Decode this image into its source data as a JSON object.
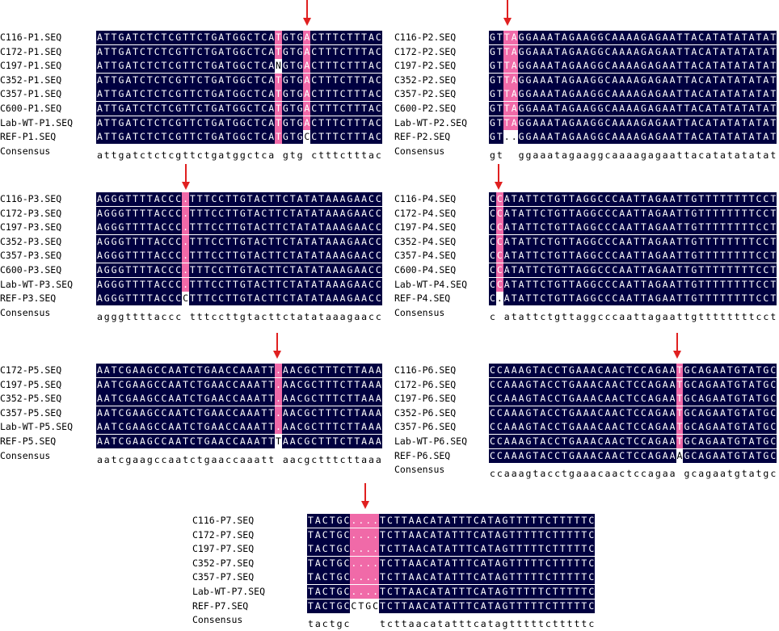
{
  "colors": {
    "identical_bg": "#000040",
    "variant_bg": "#f06aa8",
    "arrow": "#e02020"
  },
  "panels": [
    {
      "id": "P1",
      "names": [
        "C116-P1.SEQ",
        "C172-P1.SEQ",
        "C197-P1.SEQ",
        "C352-P1.SEQ",
        "C357-P1.SEQ",
        "C600-P1.SEQ",
        "Lab-WT-P1.SEQ",
        "REF-P1.SEQ"
      ],
      "seqs": [
        "ATTGATCTCTCGTTCTGATGGCTCATGTGACTTTCTTTAC",
        "ATTGATCTCTCGTTCTGATGGCTCATGTGACTTTCTTTAC",
        "ATTGATCTCTCGTTCTGATGGCTCANGTGACTTTCTTTAC",
        "ATTGATCTCTCGTTCTGATGGCTCATGTGACTTTCTTTAC",
        "ATTGATCTCTCGTTCTGATGGCTCATGTGACTTTCTTTAC",
        "ATTGATCTCTCGTTCTGATGGCTCATGTGACTTTCTTTAC",
        "ATTGATCTCTCGTTCTGATGGCTCATGTGACTTTCTTTAC",
        "ATTGATCTCTCGTTCTGATGGCTCATGTGCCTTTCTTTAC"
      ],
      "consensus": "attgatctctcgttctgatggctca gtg ctttctttac",
      "consensus_label": "Consensus"
    },
    {
      "id": "P2",
      "names": [
        "C116-P2.SEQ",
        "C172-P2.SEQ",
        "C197-P2.SEQ",
        "C352-P2.SEQ",
        "C357-P2.SEQ",
        "C600-P2.SEQ",
        "Lab-WT-P2.SEQ",
        "REF-P2.SEQ"
      ],
      "seqs": [
        "GTTAGGAAATAGAAGGCAAAAGAGAATTACATATATATAT",
        "GTTAGGAAATAGAAGGCAAAAGAGAATTACATATATATAT",
        "GTTAGGAAATAGAAGGCAAAAGAGAATTACATATATATAT",
        "GTTAGGAAATAGAAGGCAAAAGAGAATTACATATATATAT",
        "GTTAGGAAATAGAAGGCAAAAGAGAATTACATATATATAT",
        "GTTAGGAAATAGAAGGCAAAAGAGAATTACATATATATAT",
        "GTTAGGAAATAGAAGGCAAAAGAGAATTACATATATATAT",
        "GT..GGAAATAGAAGGCAAAAGAGAATTACATATATATAT"
      ],
      "consensus": "gt  ggaaatagaaggcaaaagagaattacatatatatat",
      "consensus_label": "Consensus"
    },
    {
      "id": "P3",
      "names": [
        "C116-P3.SEQ",
        "C172-P3.SEQ",
        "C197-P3.SEQ",
        "C352-P3.SEQ",
        "C357-P3.SEQ",
        "C600-P3.SEQ",
        "Lab-WT-P3.SEQ",
        "REF-P3.SEQ"
      ],
      "seqs": [
        "AGGGTTTTACCC.TTTCCTTGTACTTCTATATAAAGAACC",
        "AGGGTTTTACCC.TTTCCTTGTACTTCTATATAAAGAACC",
        "AGGGTTTTACCC.TTTCCTTGTACTTCTATATAAAGAACC",
        "AGGGTTTTACCC.TTTCCTTGTACTTCTATATAAAGAACC",
        "AGGGTTTTACCC.TTTCCTTGTACTTCTATATAAAGAACC",
        "AGGGTTTTACCC.TTTCCTTGTACTTCTATATAAAGAACC",
        "AGGGTTTTACCC.TTTCCTTGTACTTCTATATAAAGAACC",
        "AGGGTTTTACCCCTTTCCTTGTACTTCTATATAAAGAACC"
      ],
      "consensus": "agggttttaccc tttccttgtacttctatataaagaacc",
      "consensus_label": "Consensus"
    },
    {
      "id": "P4",
      "names": [
        "C116-P4.SEQ",
        "C172-P4.SEQ",
        "C197-P4.SEQ",
        "C352-P4.SEQ",
        "C357-P4.SEQ",
        "C600-P4.SEQ",
        "Lab-WT-P4.SEQ",
        "REF-P4.SEQ"
      ],
      "seqs": [
        "CCATATTCTGTTAGGCCCAATTAGAATTGTTTTTTTTCCT",
        "CCATATTCTGTTAGGCCCAATTAGAATTGTTTTTTTTCCT",
        "CCATATTCTGTTAGGCCCAATTAGAATTGTTTTTTTTCCT",
        "CCATATTCTGTTAGGCCCAATTAGAATTGTTTTTTTTCCT",
        "CCATATTCTGTTAGGCCCAATTAGAATTGTTTTTTTTCCT",
        "CCATATTCTGTTAGGCCCAATTAGAATTGTTTTTTTTCCT",
        "CCATATTCTGTTAGGCCCAATTAGAATTGTTTTTTTTCCT",
        "C.ATATTCTGTTAGGCCCAATTAGAATTGTTTTTTTTCCT"
      ],
      "consensus": "c atattctgttaggcccaattagaattgttttttttcct",
      "consensus_label": "Consensus"
    },
    {
      "id": "P5",
      "names": [
        "C172-P5.SEQ",
        "C197-P5.SEQ",
        "C352-P5.SEQ",
        "C357-P5.SEQ",
        "Lab-WT-P5.SEQ",
        "REF-P5.SEQ"
      ],
      "seqs": [
        "AATCGAAGCCAATCTGAACCAAATT.AACGCTTTCTTAAA",
        "AATCGAAGCCAATCTGAACCAAATT.AACGCTTTCTTAAA",
        "AATCGAAGCCAATCTGAACCAAATT.AACGCTTTCTTAAA",
        "AATCGAAGCCAATCTGAACCAAATT.AACGCTTTCTTAAA",
        "AATCGAAGCCAATCTGAACCAAATT.AACGCTTTCTTAAA",
        "AATCGAAGCCAATCTGAACCAAATTTAACGCTTTCTTAAA"
      ],
      "consensus": "aatcgaagccaatctgaaccaaatt aacgctttcttaaa",
      "consensus_label": "Consensus"
    },
    {
      "id": "P6",
      "names": [
        "C116-P6.SEQ",
        "C172-P6.SEQ",
        "C197-P6.SEQ",
        "C352-P6.SEQ",
        "C357-P6.SEQ",
        "Lab-WT-P6.SEQ",
        "REF-P6.SEQ"
      ],
      "seqs": [
        "CCAAAGTACCTGAAACAACTCCAGAATGCAGAATGTATGC",
        "CCAAAGTACCTGAAACAACTCCAGAATGCAGAATGTATGC",
        "CCAAAGTACCTGAAACAACTCCAGAATGCAGAATGTATGC",
        "CCAAAGTACCTGAAACAACTCCAGAATGCAGAATGTATGC",
        "CCAAAGTACCTGAAACAACTCCAGAATGCAGAATGTATGC",
        "CCAAAGTACCTGAAACAACTCCAGAATGCAGAATGTATGC",
        "CCAAAGTACCTGAAACAACTCCAGAAAGCAGAATGTATGC"
      ],
      "consensus": "ccaaagtacctgaaacaactccagaa gcagaatgtatgc",
      "consensus_label": "Consensus"
    },
    {
      "id": "P7",
      "names": [
        "C116-P7.SEQ",
        "C172-P7.SEQ",
        "C197-P7.SEQ",
        "C352-P7.SEQ",
        "C357-P7.SEQ",
        "Lab-WT-P7.SEQ",
        "REF-P7.SEQ"
      ],
      "seqs": [
        "TACTGC....TCTTAACATATTTCATAGTTTTTCTTTTTC",
        "TACTGC....TCTTAACATATTTCATAGTTTTTCTTTTTC",
        "TACTGC....TCTTAACATATTTCATAGTTTTTCTTTTTC",
        "TACTGC....TCTTAACATATTTCATAGTTTTTCTTTTTC",
        "TACTGC....TCTTAACATATTTCATAGTTTTTCTTTTTC",
        "TACTGC....TCTTAACATATTTCATAGTTTTTCTTTTTC",
        "TACTGCCTGCTCTTAACATATTTCATAGTTTTTCTTTTTC"
      ],
      "consensus": "tactgc    tcttaacatatttcatagtttttctttttc",
      "consensus_label": "Consensus"
    }
  ]
}
